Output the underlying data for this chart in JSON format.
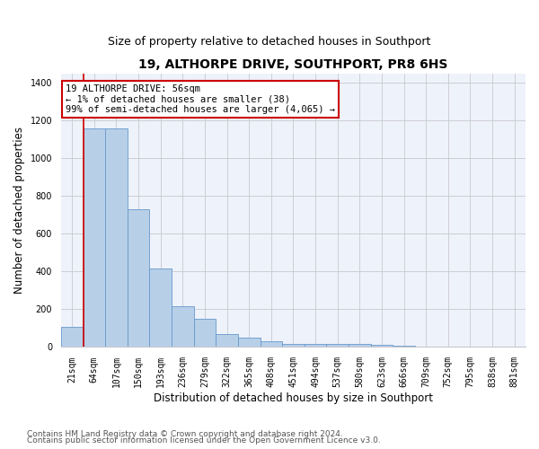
{
  "title": "19, ALTHORPE DRIVE, SOUTHPORT, PR8 6HS",
  "subtitle": "Size of property relative to detached houses in Southport",
  "xlabel": "Distribution of detached houses by size in Southport",
  "ylabel": "Number of detached properties",
  "footer1": "Contains HM Land Registry data © Crown copyright and database right 2024.",
  "footer2": "Contains public sector information licensed under the Open Government Licence v3.0.",
  "categories": [
    "21sqm",
    "64sqm",
    "107sqm",
    "150sqm",
    "193sqm",
    "236sqm",
    "279sqm",
    "322sqm",
    "365sqm",
    "408sqm",
    "451sqm",
    "494sqm",
    "537sqm",
    "580sqm",
    "623sqm",
    "666sqm",
    "709sqm",
    "752sqm",
    "795sqm",
    "838sqm",
    "881sqm"
  ],
  "bar_values": [
    105,
    1160,
    1160,
    730,
    415,
    215,
    150,
    70,
    48,
    32,
    18,
    18,
    18,
    15,
    12,
    8,
    0,
    0,
    0,
    0,
    0
  ],
  "bar_color": "#b8cfe8",
  "bar_edge_color": "#6699cc",
  "annotation_text": "19 ALTHORPE DRIVE: 56sqm\n← 1% of detached houses are smaller (38)\n99% of semi-detached houses are larger (4,065) →",
  "annotation_box_color": "#ffffff",
  "annotation_border_color": "#cc0000",
  "vline_x": 0.5,
  "ylim": [
    0,
    1450
  ],
  "yticks": [
    0,
    200,
    400,
    600,
    800,
    1000,
    1200,
    1400
  ],
  "background_color": "#eef2fa",
  "grid_color": "#c8c8d0",
  "title_fontsize": 10,
  "subtitle_fontsize": 9,
  "axis_label_fontsize": 8.5,
  "tick_fontsize": 7,
  "annotation_fontsize": 7.5,
  "footer_fontsize": 6.5
}
